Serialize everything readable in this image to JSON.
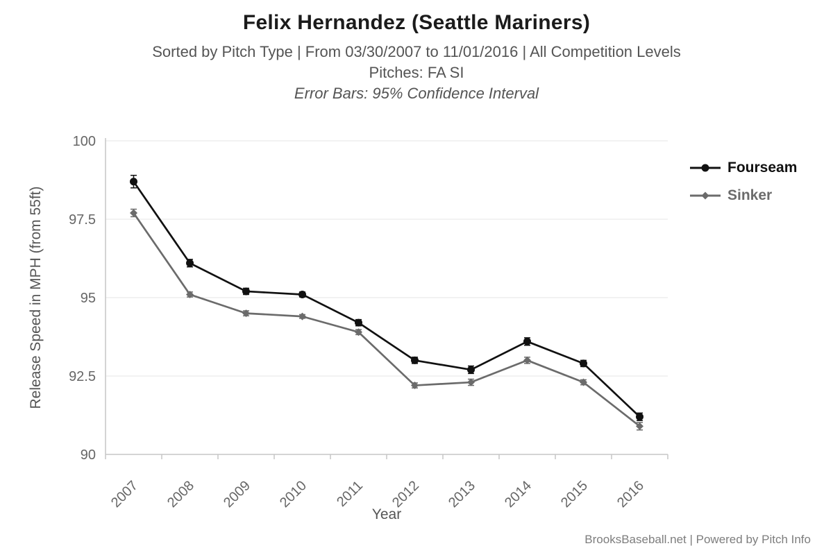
{
  "title": "Felix Hernandez (Seattle Mariners)",
  "subtitle1": "Sorted by Pitch Type | From 03/30/2007 to 11/01/2016 | All Competition Levels",
  "subtitle2": "Pitches: FA SI",
  "subtitle3": "Error Bars: 95% Confidence Interval",
  "footer": "BrooksBaseball.net | Powered by Pitch Info",
  "colors": {
    "fourseam": "#111111",
    "sinker": "#6b6b6b",
    "grid": "#e4e4e4",
    "axis": "#c6c6c6",
    "tick_text": "#666666",
    "axis_label_text": "#555555"
  },
  "chart_data": {
    "type": "line",
    "title": "Felix Hernandez (Seattle Mariners)",
    "categories": [
      "2007",
      "2008",
      "2009",
      "2010",
      "2011",
      "2012",
      "2013",
      "2014",
      "2015",
      "2016"
    ],
    "series": [
      {
        "name": "Fourseam",
        "color": "#111111",
        "marker": "circle",
        "values": [
          98.7,
          96.1,
          95.2,
          95.1,
          94.2,
          93.0,
          92.7,
          93.6,
          92.9,
          91.2
        ],
        "errors": [
          0.2,
          0.12,
          0.1,
          0.08,
          0.1,
          0.1,
          0.12,
          0.12,
          0.1,
          0.12
        ]
      },
      {
        "name": "Sinker",
        "color": "#6b6b6b",
        "marker": "diamond",
        "values": [
          97.7,
          95.1,
          94.5,
          94.4,
          93.9,
          92.2,
          92.3,
          93.0,
          92.3,
          90.9
        ],
        "errors": [
          0.12,
          0.08,
          0.08,
          0.06,
          0.08,
          0.08,
          0.1,
          0.1,
          0.08,
          0.12
        ]
      }
    ],
    "xlabel": "Year",
    "ylabel": "Release Speed in MPH (from 55ft)",
    "ylim": [
      90,
      100
    ],
    "yticks": [
      90,
      92.5,
      95,
      97.5,
      100
    ],
    "grid": true,
    "legend_position": "right",
    "error_bars_note": "95% Confidence Interval"
  }
}
